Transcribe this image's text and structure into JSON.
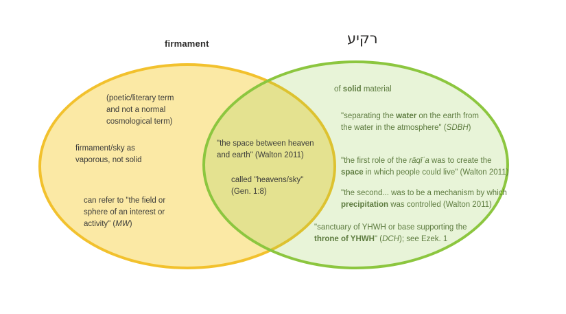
{
  "titles": {
    "left": "firmament",
    "right": "רקיע"
  },
  "colors": {
    "left_stroke": "#F2C12D",
    "left_fill": "#FBE9A5",
    "right_stroke": "#8CC63F",
    "right_fill": "rgba(140,198,62,0.2)",
    "title_text": "#2B2A29",
    "left_text": "#3C3C3A",
    "right_text": "#5E7C40"
  },
  "notes": {
    "poetic": {
      "region": "firmament-only",
      "lines": [
        [
          [
            "(poetic/literary term",
            ""
          ]
        ],
        [
          [
            "and not a normal",
            ""
          ]
        ],
        [
          [
            "cosmological term)",
            ""
          ]
        ]
      ]
    },
    "vaporous": {
      "region": "firmament-only",
      "lines": [
        [
          [
            "firmament/sky as",
            ""
          ]
        ],
        [
          [
            "vaporous, not solid",
            ""
          ]
        ]
      ]
    },
    "field_sphere": {
      "region": "firmament-only",
      "lines": [
        [
          [
            "can refer to \"the field or",
            ""
          ]
        ],
        [
          [
            "sphere of an interest or",
            ""
          ]
        ],
        [
          [
            "activity\" (",
            ""
          ],
          [
            "MW",
            "i"
          ],
          [
            ")",
            ""
          ]
        ]
      ]
    },
    "space_between": {
      "region": "overlap",
      "lines": [
        [
          [
            "\"the space between heaven",
            ""
          ]
        ],
        [
          [
            "and earth\" (Walton 2011)",
            ""
          ]
        ]
      ]
    },
    "heavens_sky": {
      "region": "overlap",
      "lines": [
        [
          [
            "called \"heavens/sky\"",
            ""
          ]
        ],
        [
          [
            "(Gen. 1:8)",
            ""
          ]
        ]
      ]
    },
    "solid": {
      "region": "raqia-only",
      "lines": [
        [
          [
            "of ",
            ""
          ],
          [
            "solid",
            "b"
          ],
          [
            " material",
            ""
          ]
        ]
      ]
    },
    "separating": {
      "region": "raqia-only",
      "lines": [
        [
          [
            "\"separating the ",
            ""
          ],
          [
            "water",
            "b"
          ],
          [
            " on the earth from",
            ""
          ]
        ],
        [
          [
            "the water in the atmosphere\" (",
            ""
          ],
          [
            "SDBH",
            "i"
          ],
          [
            ")",
            ""
          ]
        ]
      ]
    },
    "first_role": {
      "region": "raqia-only",
      "lines": [
        [
          [
            "\"the first role of the ",
            ""
          ],
          [
            "rāqīʿa",
            "i"
          ],
          [
            " was to create the",
            ""
          ]
        ],
        [
          [
            "space",
            "b"
          ],
          [
            " in which people  could live\" (Walton 2011)",
            ""
          ]
        ]
      ]
    },
    "second_role": {
      "region": "raqia-only",
      "lines": [
        [
          [
            "\"the second...  was to be a mechanism by which",
            ""
          ]
        ],
        [
          [
            "precipitation",
            "b"
          ],
          [
            " was controlled (Walton 2011)",
            ""
          ]
        ]
      ]
    },
    "sanctuary": {
      "region": "raqia-only",
      "lines": [
        [
          [
            "\"sanctuary of YHWH or base supporting the",
            ""
          ]
        ],
        [
          [
            "throne of YHWH",
            "b"
          ],
          [
            "\" (",
            ""
          ],
          [
            "DCH",
            "i"
          ],
          [
            "); see Ezek. 1",
            ""
          ]
        ]
      ]
    }
  }
}
